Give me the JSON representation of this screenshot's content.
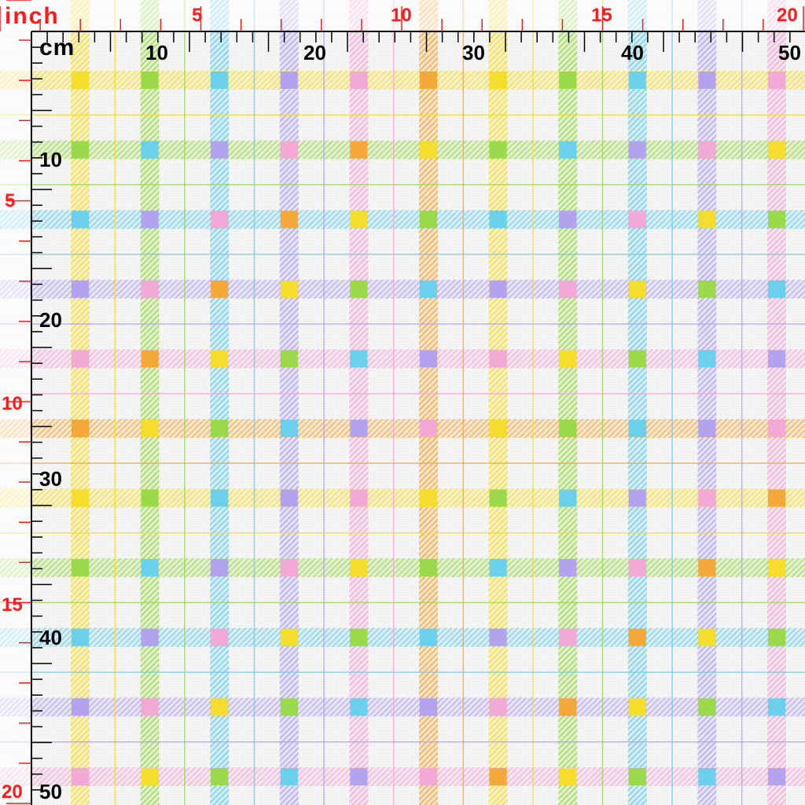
{
  "units": {
    "inch": "inch",
    "cm": "cm"
  },
  "ruler": {
    "inch_labels": [
      "5",
      "10",
      "15",
      "20"
    ],
    "cm_labels": [
      "10",
      "20",
      "30",
      "40",
      "50"
    ]
  },
  "plaid": {
    "colors": {
      "yellow": "#f5dd2e",
      "green": "#9ad94a",
      "blue": "#6ad0ec",
      "purple": "#b3a3ef",
      "pink": "#f2a9d5",
      "orange": "#f5a83a",
      "background": "#f5f5f5"
    },
    "stripe_sequence": [
      "yellow",
      "green",
      "blue",
      "purple",
      "pink",
      "orange",
      "yellow",
      "green",
      "blue",
      "purple",
      "pink"
    ]
  }
}
